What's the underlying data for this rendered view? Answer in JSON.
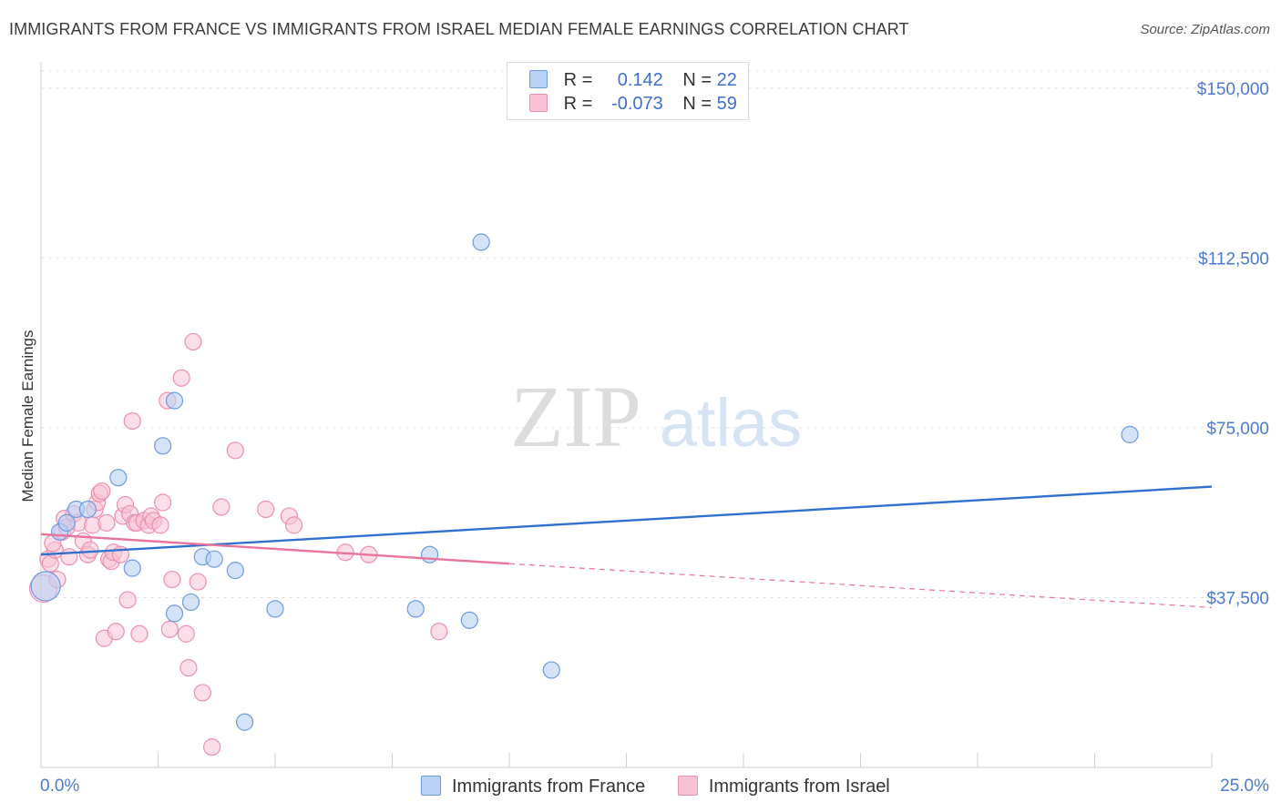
{
  "header": {
    "title": "IMMIGRANTS FROM FRANCE VS IMMIGRANTS FROM ISRAEL MEDIAN FEMALE EARNINGS CORRELATION CHART",
    "source": "Source: ZipAtlas.com"
  },
  "watermark": {
    "zip": "ZIP",
    "atlas": "atlas"
  },
  "legend": {
    "france": {
      "r_label": "R =",
      "r_value": "0.142",
      "n_label": "N =",
      "n_value": "22"
    },
    "israel": {
      "r_label": "R =",
      "r_value": "-0.073",
      "n_label": "N =",
      "n_value": "59"
    }
  },
  "colors": {
    "france_fill": "#b9d1f5",
    "france_stroke": "#6d9be0",
    "france_line": "#2f6fcf",
    "israel_fill": "#f8c2d4",
    "israel_stroke": "#ec8fb0",
    "israel_line": "#e8739b",
    "grid": "#e3e3e3",
    "axis_text": "#4a7bd0"
  },
  "chart_data": {
    "type": "scatter",
    "title": "IMMIGRANTS FROM FRANCE VS IMMIGRANTS FROM ISRAEL MEDIAN FEMALE EARNINGS CORRELATION CHART",
    "xlabel": "",
    "ylabel": "Median Female Earnings",
    "xlim": [
      0,
      25
    ],
    "ylim": [
      0,
      155000
    ],
    "x_tick_labels": [
      "0.0%",
      "25.0%"
    ],
    "y_ticks": [
      37500,
      75000,
      112500,
      150000
    ],
    "y_tick_labels": [
      "$37,500",
      "$75,000",
      "$112,500",
      "$150,000"
    ],
    "series": [
      {
        "name": "Immigrants from France",
        "points": [
          [
            0.1,
            40000,
            16
          ],
          [
            0.4,
            52000,
            9
          ],
          [
            0.75,
            57000,
            9
          ],
          [
            1.0,
            57000,
            9
          ],
          [
            1.65,
            64000,
            9
          ],
          [
            1.95,
            44000,
            9
          ],
          [
            2.6,
            71000,
            9
          ],
          [
            2.85,
            34000,
            9
          ],
          [
            2.85,
            81000,
            9
          ],
          [
            3.2,
            36500,
            9
          ],
          [
            3.45,
            46500,
            9
          ],
          [
            3.7,
            46000,
            9
          ],
          [
            4.15,
            43500,
            9
          ],
          [
            4.35,
            10000,
            9
          ],
          [
            5.0,
            35000,
            9
          ],
          [
            8.0,
            35000,
            9
          ],
          [
            8.3,
            47000,
            9
          ],
          [
            9.15,
            32500,
            9
          ],
          [
            9.4,
            116000,
            9
          ],
          [
            10.9,
            21500,
            9
          ],
          [
            23.25,
            73500,
            9
          ],
          [
            0.55,
            54000,
            9
          ]
        ],
        "trend": {
          "x": [
            0,
            25
          ],
          "y": [
            47000,
            62000
          ]
        }
      },
      {
        "name": "Immigrants from Israel",
        "points": [
          [
            0.05,
            39500,
            15
          ],
          [
            0.15,
            46000,
            9
          ],
          [
            0.2,
            45000,
            9
          ],
          [
            0.3,
            48000,
            9
          ],
          [
            0.35,
            41500,
            9
          ],
          [
            0.45,
            52000,
            9
          ],
          [
            0.5,
            55000,
            9
          ],
          [
            0.55,
            53000,
            9
          ],
          [
            0.6,
            46500,
            9
          ],
          [
            0.7,
            56000,
            9
          ],
          [
            0.8,
            54000,
            9
          ],
          [
            0.9,
            50000,
            9
          ],
          [
            1.0,
            47000,
            9
          ],
          [
            1.05,
            48000,
            9
          ],
          [
            1.1,
            53500,
            9
          ],
          [
            1.15,
            57000,
            9
          ],
          [
            1.2,
            58500,
            9
          ],
          [
            1.25,
            60500,
            9
          ],
          [
            1.3,
            61000,
            9
          ],
          [
            1.35,
            28500,
            9
          ],
          [
            1.4,
            54000,
            9
          ],
          [
            1.45,
            46000,
            9
          ],
          [
            1.5,
            45500,
            9
          ],
          [
            1.55,
            47500,
            9
          ],
          [
            1.6,
            30000,
            9
          ],
          [
            1.7,
            47000,
            9
          ],
          [
            1.75,
            55500,
            9
          ],
          [
            1.8,
            58000,
            9
          ],
          [
            1.85,
            37000,
            9
          ],
          [
            1.9,
            56000,
            9
          ],
          [
            1.95,
            76500,
            9
          ],
          [
            2.0,
            54000,
            9
          ],
          [
            2.05,
            54000,
            9
          ],
          [
            2.1,
            29500,
            9
          ],
          [
            2.2,
            54500,
            9
          ],
          [
            2.3,
            53500,
            9
          ],
          [
            2.35,
            55500,
            9
          ],
          [
            2.4,
            54500,
            9
          ],
          [
            2.55,
            53500,
            9
          ],
          [
            2.6,
            58500,
            9
          ],
          [
            2.7,
            81000,
            9
          ],
          [
            2.75,
            30500,
            9
          ],
          [
            2.8,
            41500,
            9
          ],
          [
            3.0,
            86000,
            9
          ],
          [
            3.1,
            29500,
            9
          ],
          [
            3.15,
            22000,
            9
          ],
          [
            3.25,
            94000,
            9
          ],
          [
            3.35,
            41000,
            9
          ],
          [
            3.45,
            16500,
            9
          ],
          [
            3.65,
            4500,
            9
          ],
          [
            3.85,
            57500,
            9
          ],
          [
            4.15,
            70000,
            9
          ],
          [
            4.8,
            57000,
            9
          ],
          [
            5.3,
            55500,
            9
          ],
          [
            5.4,
            53500,
            9
          ],
          [
            6.5,
            47500,
            9
          ],
          [
            7.0,
            47000,
            9
          ],
          [
            8.5,
            30000,
            9
          ],
          [
            0.25,
            49500,
            9
          ]
        ],
        "trend": {
          "x": [
            0,
            10
          ],
          "y": [
            51500,
            45000
          ]
        },
        "trend_dashed": {
          "x": [
            10,
            25
          ],
          "y": [
            45000,
            35300
          ]
        }
      }
    ]
  },
  "bottom_legend": {
    "france_label": "Immigrants from France",
    "israel_label": "Immigrants from Israel"
  }
}
